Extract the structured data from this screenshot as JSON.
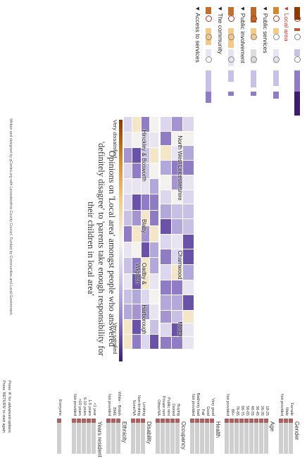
{
  "colors": {
    "very_dissatisfied": "#8a3c00",
    "neutral": "#f4f2ee",
    "very_satisfied": "#3d1d6e",
    "demographic_bar": "#cfcfcf",
    "demographic_value": "#a86060",
    "active_topic": "#c0392b"
  },
  "topics": [
    {
      "label": "▼ Local area",
      "active": true
    },
    {
      "label": "▼ Public services",
      "active": false
    },
    {
      "label": "▼ Public involvement",
      "active": false
    },
    {
      "label": "▼ The community",
      "active": false
    },
    {
      "label": "▼ Access to services",
      "active": false
    }
  ],
  "title": "Opinions on 'Local area' amongst people who answered 'definitely disagree' to 'parents take enough responsibility for their children in local area'",
  "credit": "Written and designed by gCentre.org with Leicestershire County Council. Funded by Communities and Local Government.",
  "legend": {
    "low_label": "Very dissatisfied",
    "high_label": "Very satisfied"
  },
  "chart_data": {
    "type": "heatmap",
    "title": "Opinions on 'Local area' amongst people who answered 'definitely disagree' to 'parents take enough responsibility for their children in local area'",
    "scale": [
      "Very dissatisfied",
      "Very satisfied"
    ],
    "districts": [
      {
        "name": "North West Leicestershire"
      },
      {
        "name": "Charnwood"
      },
      {
        "name": "Melton"
      },
      {
        "name": "Hinckley & Bosworth"
      },
      {
        "name": "Blaby"
      },
      {
        "name": "Oadby & Wigston"
      },
      {
        "name": "Harborough"
      }
    ]
  },
  "demographics": [
    {
      "title": "Gender",
      "items": [
        "Female",
        "Male",
        "Not provided"
      ]
    },
    {
      "title": "Age",
      "items": [
        "18-25",
        "26-35",
        "36-45",
        "46-55",
        "56-65",
        "66-75",
        "76-85",
        "86+",
        "Not provided"
      ]
    },
    {
      "title": "Health",
      "items": [
        "Very good",
        "Good",
        "Fair",
        "Bad/very bad",
        "Not provided"
      ]
    },
    {
      "title": "Occupancy",
      "items": [
        "Buying",
        "Owned",
        "Public rent",
        "Private rent",
        "Other/NA"
      ]
    },
    {
      "title": "Disability",
      "items": [
        "Limiting",
        "Non-limiting",
        "None/NA"
      ]
    },
    {
      "title": "Ethnicity",
      "items": [
        "White - British",
        "BME",
        "Not provided"
      ]
    },
    {
      "title": "Years resident",
      "items": [
        "<1 year",
        "1-5 years",
        "6-10 years",
        ">10 years",
        "Not provided"
      ]
    },
    {
      "title": "",
      "items": [
        "Everyone"
      ]
    }
  ],
  "footer": [
    "Press 'A' for advanced options",
    "Press 'RETURN' to start again"
  ]
}
